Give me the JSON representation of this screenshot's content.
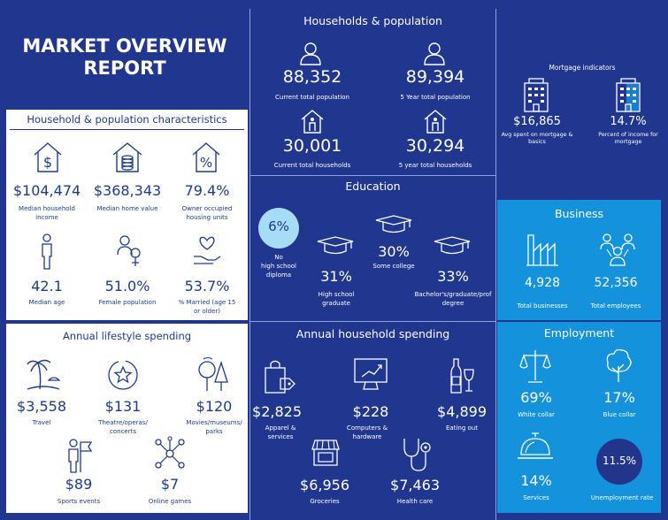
{
  "title_line1": "MARKET OVERVIEW",
  "title_line2": "REPORT",
  "households": {
    "header": "Households & population",
    "items": [
      {
        "value": "88,352",
        "label": "Current total population"
      },
      {
        "value": "89,394",
        "label": "5 Year total population"
      },
      {
        "value": "30,001",
        "label": "Current total households"
      },
      {
        "value": "30,294",
        "label": "5 year total households"
      }
    ]
  },
  "mortgage": {
    "header": "Mortgage indicators",
    "items": [
      {
        "value": "$16,865",
        "label1": "Avg spent on mortgage &",
        "label2": "basics"
      },
      {
        "value": "14.7%",
        "label1": "Percent of income for",
        "label2": "mortgage"
      }
    ]
  },
  "characteristics": {
    "header": "Household & population characteristics",
    "items": [
      {
        "value": "$104,474",
        "label1": "Median household",
        "label2": "income"
      },
      {
        "value": "$368,343",
        "label1": "Median home value",
        "label2": ""
      },
      {
        "value": "79.4%",
        "label1": "Owner occupied",
        "label2": "housing units"
      },
      {
        "value": "42.1",
        "label1": "Median age",
        "label2": ""
      },
      {
        "value": "51.0%",
        "label1": "Female population",
        "label2": ""
      },
      {
        "value": "53.7%",
        "label1": "% Married (age 15",
        "label2": "or older)"
      }
    ]
  },
  "education": {
    "header": "Education",
    "no_hs_value": "6%",
    "no_hs_label": [
      "No",
      "high school",
      "diploma"
    ],
    "hs_value": "31%",
    "hs_label": [
      "High school",
      "graduate"
    ],
    "college_value": "30%",
    "college_label": "Some college",
    "bach_value": "33%",
    "bach_label": [
      "Bachelor's/graduate/prof",
      "degree"
    ]
  },
  "business": {
    "header": "Business",
    "items": [
      {
        "value": "4,928",
        "label": "Total businesses"
      },
      {
        "value": "52,356",
        "label": "Total employees"
      }
    ]
  },
  "lifestyle": {
    "header": "Annual lifestyle spending",
    "items": [
      {
        "value": "$3,558",
        "label1": "Travel",
        "label2": ""
      },
      {
        "value": "$131",
        "label1": "Theatre/operas/",
        "label2": "concerts"
      },
      {
        "value": "$120",
        "label1": "Movies/museums/",
        "label2": "parks"
      },
      {
        "value": "$89",
        "label1": "Sports events",
        "label2": ""
      },
      {
        "value": "$7",
        "label1": "Online games",
        "label2": ""
      }
    ]
  },
  "household_spending": {
    "header": "Annual household spending",
    "items": [
      {
        "value": "$2,825",
        "label1": "Apparel &",
        "label2": "services"
      },
      {
        "value": "$228",
        "label1": "Computers &",
        "label2": "hardware"
      },
      {
        "value": "$4,899",
        "label1": "Eating out",
        "label2": ""
      },
      {
        "value": "$6,956",
        "label1": "Groceries",
        "label2": ""
      },
      {
        "value": "$7,463",
        "label1": "Health care",
        "label2": ""
      }
    ]
  },
  "employment": {
    "header": "Employment",
    "items": [
      {
        "value": "69%",
        "label": "White collar"
      },
      {
        "value": "17%",
        "label": "Blue collar"
      },
      {
        "value": "14%",
        "label": "Services"
      },
      {
        "value": "11.5%",
        "label": "Unemployment rate"
      }
    ]
  }
}
